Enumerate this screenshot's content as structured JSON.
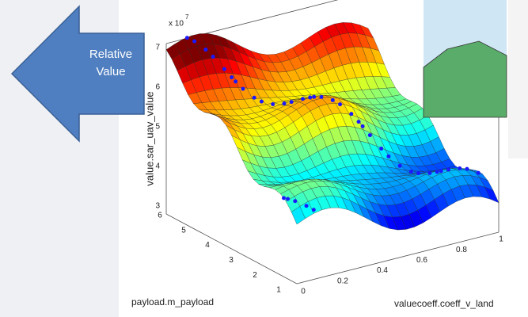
{
  "callout": {
    "text": "Relative Value"
  },
  "plot": {
    "exponent_base": "x 10",
    "exponent": "7",
    "z_label": "value.sar_uav_value",
    "y_label": "payload.m_payload",
    "x_label": "valuecoeff.coeff_v_land",
    "z_ticks": [
      "3",
      "4",
      "5",
      "6",
      "7"
    ],
    "y_ticks": [
      "1",
      "2",
      "3",
      "4",
      "5",
      "6"
    ],
    "x_ticks": [
      "0",
      "0.2",
      "0.4",
      "0.6",
      "0.8",
      "1"
    ]
  }
}
